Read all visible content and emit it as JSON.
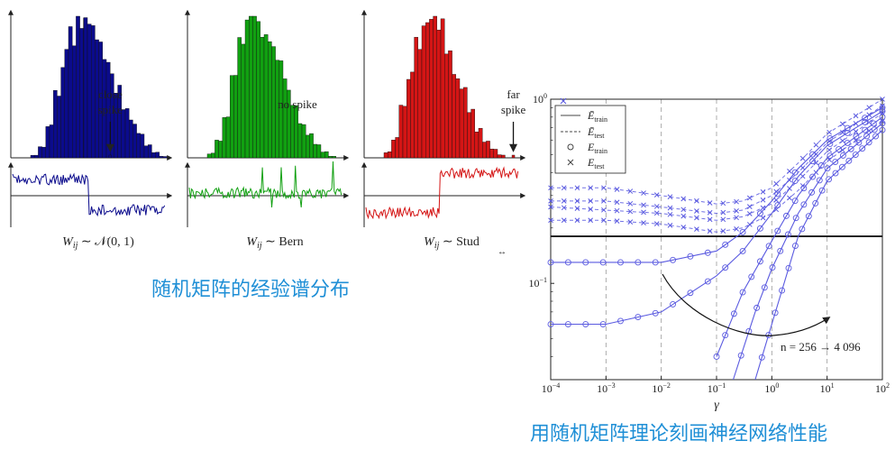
{
  "captions": {
    "left": "随机矩阵的经验谱分布",
    "right": "用随机矩阵理论刻画神经网络性能"
  },
  "colors": {
    "blue": "#0b0b8c",
    "green": "#11a011",
    "red": "#d41515",
    "plot_blue": "#5a5ae0",
    "caption": "#1f8fd6"
  },
  "chart_data": [
    {
      "type": "bar",
      "name": "spectrum-gaussian",
      "label": "W_ij ~ N(0,1)",
      "bars": [
        2,
        8,
        22,
        48,
        70,
        86,
        100,
        96,
        88,
        76,
        62,
        48,
        36,
        25,
        16,
        9,
        4,
        1
      ],
      "spike_position": 0.62,
      "annotation": [
        "close",
        "spike"
      ],
      "signal": "step-down"
    },
    {
      "type": "bar",
      "name": "spectrum-bernoulli",
      "label": "W_ij ~ Bern",
      "bars": [
        3,
        12,
        30,
        55,
        80,
        96,
        100,
        94,
        82,
        68,
        52,
        38,
        26,
        16,
        9,
        4,
        1
      ],
      "annotation": [
        "no spike"
      ],
      "signal": "flat-with-spikes"
    },
    {
      "type": "bar",
      "name": "spectrum-student",
      "label": "W_ij ~ Stud",
      "bars": [
        4,
        14,
        34,
        60,
        84,
        98,
        100,
        92,
        78,
        62,
        46,
        32,
        20,
        12,
        6,
        2
      ],
      "spike_position": 0.93,
      "annotation": [
        "far",
        "spike"
      ],
      "signal": "step-up"
    },
    {
      "type": "line",
      "name": "error-vs-gamma",
      "xlabel": "γ",
      "xscale": "log",
      "yscale": "log",
      "xlim": [
        0.0001,
        100
      ],
      "ylim": [
        0.03,
        1
      ],
      "xticks": [
        "10",
        "10",
        "10",
        "10",
        "10",
        "10",
        "10"
      ],
      "xtick_exponents": [
        "−4",
        "−3",
        "−2",
        "−1",
        "0",
        "1",
        "2"
      ],
      "yticks": [
        "10",
        "10"
      ],
      "ytick_exponents": [
        "0",
        "−1"
      ],
      "legend": [
        "Ē",
        "Ē",
        "E",
        "E"
      ],
      "legend_subscripts": [
        "train",
        "test",
        "train",
        "test"
      ],
      "annotation": "n = 256 → 4 096",
      "reference_line_y": 0.18,
      "series_test": [
        {
          "x": [
            0.0001,
            0.001,
            0.01,
            0.1,
            0.3,
            1,
            3,
            10,
            100
          ],
          "y": [
            0.33,
            0.33,
            0.3,
            0.27,
            0.28,
            0.33,
            0.45,
            0.65,
            1.0
          ]
        },
        {
          "x": [
            0.0001,
            0.001,
            0.01,
            0.1,
            0.3,
            1,
            3,
            10,
            100
          ],
          "y": [
            0.28,
            0.28,
            0.26,
            0.24,
            0.25,
            0.3,
            0.4,
            0.58,
            0.92
          ]
        },
        {
          "x": [
            0.0001,
            0.001,
            0.01,
            0.1,
            0.3,
            1,
            3,
            10,
            100
          ],
          "y": [
            0.26,
            0.25,
            0.24,
            0.22,
            0.23,
            0.27,
            0.36,
            0.52,
            0.84
          ]
        },
        {
          "x": [
            0.0001,
            0.001,
            0.01,
            0.1,
            0.3,
            1,
            3,
            10,
            100
          ],
          "y": [
            0.22,
            0.22,
            0.21,
            0.19,
            0.2,
            0.24,
            0.32,
            0.46,
            0.76
          ]
        }
      ],
      "series_train": [
        {
          "x": [
            0.0001,
            0.001,
            0.01,
            0.1,
            0.3,
            1,
            3,
            10,
            100
          ],
          "y": [
            0.13,
            0.13,
            0.13,
            0.15,
            0.19,
            0.28,
            0.42,
            0.6,
            0.9
          ]
        },
        {
          "x": [
            0.0001,
            0.001,
            0.01,
            0.1,
            0.3,
            1,
            3,
            10,
            100
          ],
          "y": [
            0.06,
            0.06,
            0.07,
            0.11,
            0.15,
            0.24,
            0.38,
            0.56,
            0.86
          ]
        },
        {
          "x": [
            0.1,
            0.3,
            1,
            3,
            10,
            100
          ],
          "y": [
            0.04,
            0.09,
            0.17,
            0.3,
            0.48,
            0.8
          ]
        },
        {
          "x": [
            0.2,
            0.5,
            1,
            3,
            10,
            100
          ],
          "y": [
            0.03,
            0.07,
            0.12,
            0.24,
            0.42,
            0.74
          ]
        },
        {
          "x": [
            0.5,
            1,
            3,
            10,
            100
          ],
          "y": [
            0.03,
            0.06,
            0.18,
            0.36,
            0.68
          ]
        }
      ]
    }
  ]
}
